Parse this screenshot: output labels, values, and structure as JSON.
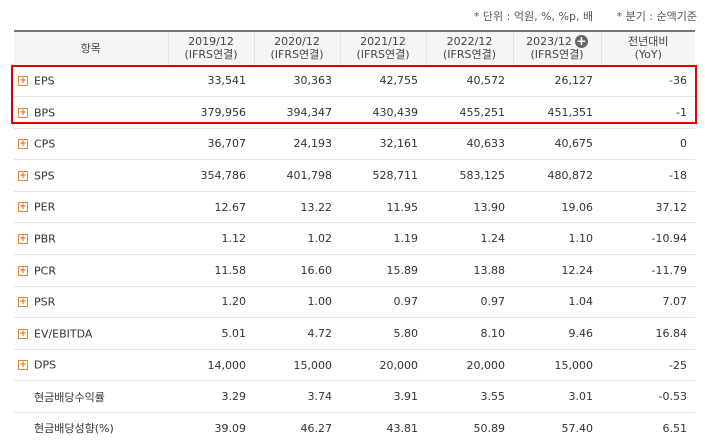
{
  "notes": {
    "unit": "* 단위 : 억원, %, %p, 배",
    "period": "* 분기 : 순액기준"
  },
  "header": {
    "item": "항목",
    "years": [
      {
        "line1": "2019/12",
        "line2": "(IFRS연결)"
      },
      {
        "line1": "2020/12",
        "line2": "(IFRS연결)"
      },
      {
        "line1": "2021/12",
        "line2": "(IFRS연결)"
      },
      {
        "line1": "2022/12",
        "line2": "(IFRS연결)"
      },
      {
        "line1": "2023/12",
        "line2": "(IFRS연결)"
      }
    ],
    "yoy_line1": "전년대비",
    "yoy_line2": "(YoY)"
  },
  "rows": [
    {
      "label": "EPS",
      "values": [
        "33,541",
        "30,363",
        "42,755",
        "40,572",
        "26,127"
      ],
      "yoy": "-36"
    },
    {
      "label": "BPS",
      "values": [
        "379,956",
        "394,347",
        "430,439",
        "455,251",
        "451,351"
      ],
      "yoy": "-1"
    },
    {
      "label": "CPS",
      "values": [
        "36,707",
        "24,193",
        "32,161",
        "40,633",
        "40,675"
      ],
      "yoy": "0"
    },
    {
      "label": "SPS",
      "values": [
        "354,786",
        "401,798",
        "528,711",
        "583,125",
        "480,872"
      ],
      "yoy": "-18"
    },
    {
      "label": "PER",
      "values": [
        "12.67",
        "13.22",
        "11.95",
        "13.90",
        "19.06"
      ],
      "yoy": "37.12"
    },
    {
      "label": "PBR",
      "values": [
        "1.12",
        "1.02",
        "1.19",
        "1.24",
        "1.10"
      ],
      "yoy": "-10.94"
    },
    {
      "label": "PCR",
      "values": [
        "11.58",
        "16.60",
        "15.89",
        "13.88",
        "12.24"
      ],
      "yoy": "-11.79"
    },
    {
      "label": "PSR",
      "values": [
        "1.20",
        "1.00",
        "0.97",
        "0.97",
        "1.04"
      ],
      "yoy": "7.07"
    },
    {
      "label": "EV/EBITDA",
      "values": [
        "5.01",
        "4.72",
        "5.80",
        "8.10",
        "9.46"
      ],
      "yoy": "16.84"
    },
    {
      "label": "DPS",
      "values": [
        "14,000",
        "15,000",
        "20,000",
        "20,000",
        "15,000"
      ],
      "yoy": "-25"
    },
    {
      "label": "현금배당수익률",
      "values": [
        "3.29",
        "3.74",
        "3.91",
        "3.55",
        "3.01"
      ],
      "yoy": "-0.53"
    },
    {
      "label": "현금배당성향(%)",
      "values": [
        "39.09",
        "46.27",
        "43.81",
        "50.89",
        "57.40"
      ],
      "yoy": "6.51"
    }
  ],
  "expandable_rows": 10,
  "colors": {
    "highlight": "#e00000",
    "negative": "#d21f1f",
    "expand_icon": "#e06a1c"
  }
}
